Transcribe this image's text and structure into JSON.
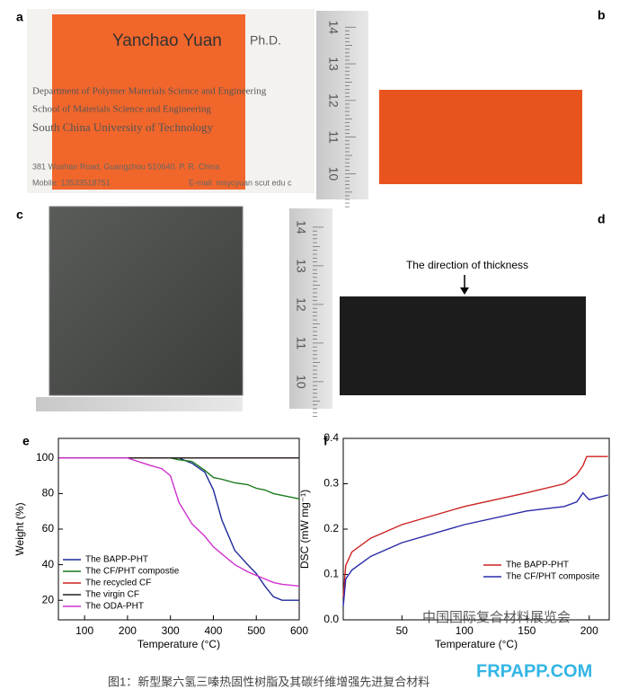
{
  "panels": {
    "a": "a",
    "b": "b",
    "c": "c",
    "d": "d"
  },
  "card": {
    "name": "Yanchao Yuan",
    "degree": "Ph.D.",
    "dept": "Department of Polymer Materials Science and Engineering",
    "school": "School of Materials Science and Engineering",
    "university": "South China University of Technology",
    "address": "381 Wushan Road, Guangzhou 510640, P. R. China",
    "mobile": "Mobile: 13533518751",
    "email": "E-mail: msycyuan scut edu c"
  },
  "ruler_b": [
    "14",
    "13",
    "12",
    "11",
    "10"
  ],
  "ruler_d": [
    "14",
    "13",
    "12",
    "11",
    "10"
  ],
  "annotation_d": "The direction of thickness",
  "caption": "图1：新型聚六氢三嗪热固性树脂及其碳纤维增强先进复合材料",
  "watermark": "中国国际复合材料展览会",
  "site": "FRPAPP.COM",
  "chart_data": [
    {
      "type": "line",
      "label": "e",
      "xlabel": "Temperature (°C)",
      "ylabel": "Weight (%)",
      "xlim": [
        39,
        600
      ],
      "xticks": [
        100,
        200,
        300,
        400,
        500,
        600
      ],
      "ylim": [
        9,
        111
      ],
      "yticks": [
        20,
        40,
        60,
        80,
        100
      ],
      "legend": "lower-left",
      "x": [
        40,
        100,
        150,
        200,
        250,
        280,
        300,
        320,
        350,
        380,
        400,
        420,
        450,
        480,
        500,
        520,
        540,
        560,
        600
      ],
      "series": [
        {
          "name": "The BAPP-PHT",
          "color": "#1f2a9a",
          "values": [
            100,
            100,
            100,
            100,
            100,
            100,
            100,
            100,
            97,
            92,
            82,
            65,
            48,
            40,
            35,
            28,
            22,
            20,
            20
          ]
        },
        {
          "name": "The CF/PHT compostie",
          "color": "#1a7a1a",
          "values": [
            100,
            100,
            100,
            100,
            100,
            100,
            100,
            99,
            98,
            93,
            89,
            88,
            86,
            85,
            83,
            82,
            80,
            79,
            77
          ]
        },
        {
          "name": "The recycled CF",
          "color": "#cc2222",
          "values": [
            100,
            100,
            100,
            100,
            100,
            100,
            100,
            100,
            100,
            100,
            100,
            100,
            100,
            100,
            100,
            100,
            100,
            100,
            100
          ]
        },
        {
          "name": "The virgin CF",
          "color": "#222222",
          "values": [
            100,
            100,
            100,
            100,
            100,
            100,
            100,
            100,
            100,
            100,
            100,
            100,
            100,
            100,
            100,
            100,
            100,
            100,
            100
          ]
        },
        {
          "name": "The ODA-PHT",
          "color": "#d030d0",
          "values": [
            100,
            100,
            100,
            100,
            96,
            94,
            90,
            75,
            63,
            56,
            50,
            46,
            40,
            36,
            34,
            32,
            30,
            29,
            28
          ]
        }
      ]
    },
    {
      "type": "line",
      "label": "f",
      "xlabel": "Temperature (°C)",
      "ylabel": "DSC (mW mg⁻¹)",
      "xlim": [
        3,
        216
      ],
      "xticks": [
        50,
        100,
        150,
        200
      ],
      "ylim": [
        0,
        0.4
      ],
      "yticks": [
        {
          "value": 0,
          "label": "0.0"
        },
        0.1,
        0.2,
        0.3,
        0.4
      ],
      "legend": "center-right",
      "x": [
        3,
        5,
        10,
        25,
        50,
        100,
        150,
        180,
        190,
        195,
        198,
        200,
        215
      ],
      "series": [
        {
          "name": "The BAPP-PHT",
          "color": "#cc2222",
          "values": [
            0.05,
            0.12,
            0.15,
            0.18,
            0.21,
            0.25,
            0.28,
            0.3,
            0.32,
            0.34,
            0.36,
            0.36,
            0.36
          ]
        },
        {
          "name": "The CF/PHT composite",
          "color": "#2a2aaa",
          "values": [
            0.03,
            0.09,
            0.11,
            0.14,
            0.17,
            0.21,
            0.24,
            0.25,
            0.26,
            0.28,
            0.27,
            0.265,
            0.275
          ]
        }
      ]
    }
  ]
}
